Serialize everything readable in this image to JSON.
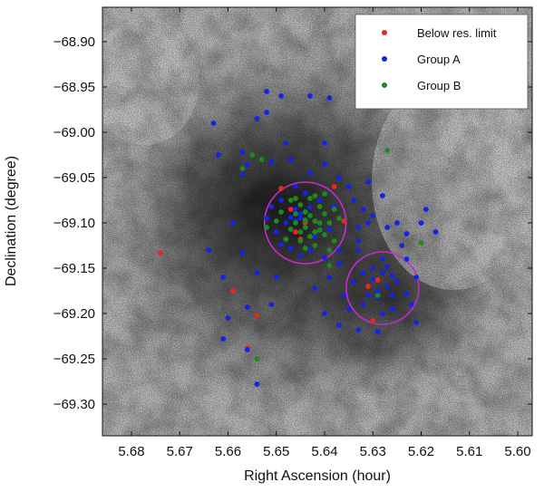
{
  "chart_data": {
    "type": "scatter",
    "xlabel": "Right Ascension (hour)",
    "ylabel": "Declination (degree)",
    "xlim": [
      5.686,
      5.597
    ],
    "ylim": [
      -69.335,
      -68.862
    ],
    "x_axis_inverted": true,
    "xticks": [
      5.68,
      5.67,
      5.66,
      5.65,
      5.64,
      5.63,
      5.62,
      5.61,
      5.6
    ],
    "xtick_labels": [
      "5.68",
      "5.67",
      "5.66",
      "5.65",
      "5.64",
      "5.63",
      "5.62",
      "5.61",
      "5.60"
    ],
    "yticks": [
      -68.9,
      -68.95,
      -69.0,
      -69.05,
      -69.1,
      -69.15,
      -69.2,
      -69.25,
      -69.3
    ],
    "ytick_labels": [
      "−68.90",
      "−68.95",
      "−69.00",
      "−69.05",
      "−69.10",
      "−69.15",
      "−69.20",
      "−69.25",
      "−69.30"
    ],
    "background": "grayscale nebula image (H-alpha, inverted)",
    "grid": false,
    "legend_position": "top-right",
    "series": [
      {
        "name": "Below res. limit",
        "color": "#e8281e",
        "points": [
          [
            5.674,
            -69.133
          ],
          [
            5.654,
            -69.202
          ],
          [
            5.656,
            -69.238
          ],
          [
            5.659,
            -69.175
          ],
          [
            5.649,
            -69.062
          ],
          [
            5.638,
            -69.06
          ],
          [
            5.645,
            -69.118
          ],
          [
            5.646,
            -69.11
          ],
          [
            5.647,
            -69.085
          ],
          [
            5.631,
            -69.17
          ],
          [
            5.629,
            -69.163
          ],
          [
            5.63,
            -69.208
          ],
          [
            5.636,
            -69.098
          ],
          [
            5.644,
            -69.1
          ]
        ]
      },
      {
        "name": "Group A",
        "color": "#1423e6",
        "points": [
          [
            5.652,
            -68.955
          ],
          [
            5.663,
            -68.99
          ],
          [
            5.662,
            -69.025
          ],
          [
            5.649,
            -68.96
          ],
          [
            5.643,
            -68.96
          ],
          [
            5.639,
            -68.962
          ],
          [
            5.654,
            -68.985
          ],
          [
            5.657,
            -69.022
          ],
          [
            5.656,
            -69.036
          ],
          [
            5.657,
            -69.046
          ],
          [
            5.651,
            -69.033
          ],
          [
            5.647,
            -69.03
          ],
          [
            5.646,
            -69.06
          ],
          [
            5.643,
            -69.045
          ],
          [
            5.648,
            -69.012
          ],
          [
            5.652,
            -68.978
          ],
          [
            5.659,
            -69.1
          ],
          [
            5.664,
            -69.13
          ],
          [
            5.661,
            -69.16
          ],
          [
            5.657,
            -69.133
          ],
          [
            5.66,
            -69.205
          ],
          [
            5.656,
            -69.193
          ],
          [
            5.661,
            -69.228
          ],
          [
            5.656,
            -69.24
          ],
          [
            5.654,
            -69.278
          ],
          [
            5.654,
            -69.155
          ],
          [
            5.65,
            -69.16
          ],
          [
            5.642,
            -69.172
          ],
          [
            5.64,
            -69.2
          ],
          [
            5.645,
            -69.136
          ],
          [
            5.651,
            -69.19
          ],
          [
            5.639,
            -69.16
          ],
          [
            5.637,
            -69.213
          ],
          [
            5.633,
            -69.218
          ],
          [
            5.629,
            -69.22
          ],
          [
            5.626,
            -69.195
          ],
          [
            5.622,
            -69.19
          ],
          [
            5.623,
            -69.14
          ],
          [
            5.624,
            -69.125
          ],
          [
            5.625,
            -69.1
          ],
          [
            5.62,
            -69.1
          ],
          [
            5.619,
            -69.085
          ],
          [
            5.617,
            -69.11
          ],
          [
            5.628,
            -69.07
          ],
          [
            5.631,
            -69.055
          ],
          [
            5.634,
            -69.075
          ],
          [
            5.638,
            -69.082
          ],
          [
            5.64,
            -69.09
          ],
          [
            5.641,
            -69.1
          ],
          [
            5.642,
            -69.115
          ],
          [
            5.645,
            -69.095
          ],
          [
            5.646,
            -69.085
          ],
          [
            5.648,
            -69.1
          ],
          [
            5.65,
            -69.11
          ],
          [
            5.652,
            -69.095
          ],
          [
            5.649,
            -69.124
          ],
          [
            5.647,
            -69.128
          ],
          [
            5.643,
            -69.13
          ],
          [
            5.637,
            -69.13
          ],
          [
            5.633,
            -69.12
          ],
          [
            5.631,
            -69.1
          ],
          [
            5.628,
            -69.14
          ],
          [
            5.626,
            -69.158
          ],
          [
            5.627,
            -69.17
          ],
          [
            5.629,
            -69.175
          ],
          [
            5.631,
            -69.18
          ],
          [
            5.632,
            -69.19
          ],
          [
            5.63,
            -69.162
          ],
          [
            5.628,
            -69.155
          ],
          [
            5.63,
            -69.15
          ],
          [
            5.627,
            -69.148
          ],
          [
            5.625,
            -69.165
          ],
          [
            5.623,
            -69.178
          ],
          [
            5.621,
            -69.16
          ],
          [
            5.634,
            -69.165
          ],
          [
            5.636,
            -69.18
          ],
          [
            5.635,
            -69.195
          ],
          [
            5.628,
            -69.2
          ],
          [
            5.626,
            -69.18
          ],
          [
            5.644,
            -69.105
          ],
          [
            5.646,
            -69.098
          ],
          [
            5.645,
            -69.09
          ],
          [
            5.647,
            -69.094
          ],
          [
            5.643,
            -69.083
          ],
          [
            5.644,
            -69.067
          ],
          [
            5.641,
            -69.075
          ],
          [
            5.639,
            -69.107
          ],
          [
            5.649,
            -69.075
          ],
          [
            5.651,
            -69.082
          ],
          [
            5.64,
            -69.138
          ],
          [
            5.637,
            -69.145
          ],
          [
            5.633,
            -69.13
          ],
          [
            5.633,
            -69.105
          ],
          [
            5.63,
            -69.092
          ],
          [
            5.623,
            -69.112
          ],
          [
            5.621,
            -69.21
          ],
          [
            5.64,
            -69.012
          ],
          [
            5.64,
            -69.035
          ],
          [
            5.637,
            -69.05
          ],
          [
            5.635,
            -69.06
          ],
          [
            5.632,
            -69.085
          ],
          [
            5.627,
            -69.105
          ],
          [
            5.632,
            -69.155
          ],
          [
            5.629,
            -69.182
          ]
        ]
      },
      {
        "name": "Group B",
        "color": "#1d8a1d",
        "points": [
          [
            5.655,
            -69.025
          ],
          [
            5.657,
            -69.04
          ],
          [
            5.653,
            -69.03
          ],
          [
            5.627,
            -69.02
          ],
          [
            5.647,
            -69.075
          ],
          [
            5.645,
            -69.08
          ],
          [
            5.644,
            -69.088
          ],
          [
            5.643,
            -69.092
          ],
          [
            5.642,
            -69.098
          ],
          [
            5.646,
            -69.1
          ],
          [
            5.644,
            -69.105
          ],
          [
            5.642,
            -69.11
          ],
          [
            5.643,
            -69.115
          ],
          [
            5.645,
            -69.12
          ],
          [
            5.642,
            -69.125
          ],
          [
            5.641,
            -69.1
          ],
          [
            5.64,
            -69.09
          ],
          [
            5.639,
            -69.1
          ],
          [
            5.646,
            -69.09
          ],
          [
            5.647,
            -69.107
          ],
          [
            5.645,
            -69.11
          ],
          [
            5.648,
            -69.118
          ],
          [
            5.649,
            -69.088
          ],
          [
            5.643,
            -69.073
          ],
          [
            5.641,
            -69.082
          ],
          [
            5.64,
            -69.113
          ],
          [
            5.644,
            -69.128
          ],
          [
            5.638,
            -69.12
          ],
          [
            5.637,
            -69.095
          ],
          [
            5.638,
            -69.085
          ],
          [
            5.65,
            -69.098
          ],
          [
            5.652,
            -69.105
          ],
          [
            5.646,
            -69.073
          ],
          [
            5.64,
            -69.068
          ],
          [
            5.644,
            -69.097
          ],
          [
            5.641,
            -69.108
          ],
          [
            5.639,
            -69.13
          ],
          [
            5.642,
            -69.07
          ],
          [
            5.654,
            -69.25
          ],
          [
            5.62,
            -69.122
          ],
          [
            5.629,
            -69.18
          ],
          [
            5.639,
            -69.147
          ]
        ]
      }
    ],
    "circles": [
      {
        "center_x": 5.644,
        "center_y": -69.1,
        "radius_deg": 0.045,
        "color": "#c42ad2"
      },
      {
        "center_x": 5.628,
        "center_y": -69.172,
        "radius_deg": 0.04,
        "color": "#c42ad2"
      }
    ]
  }
}
